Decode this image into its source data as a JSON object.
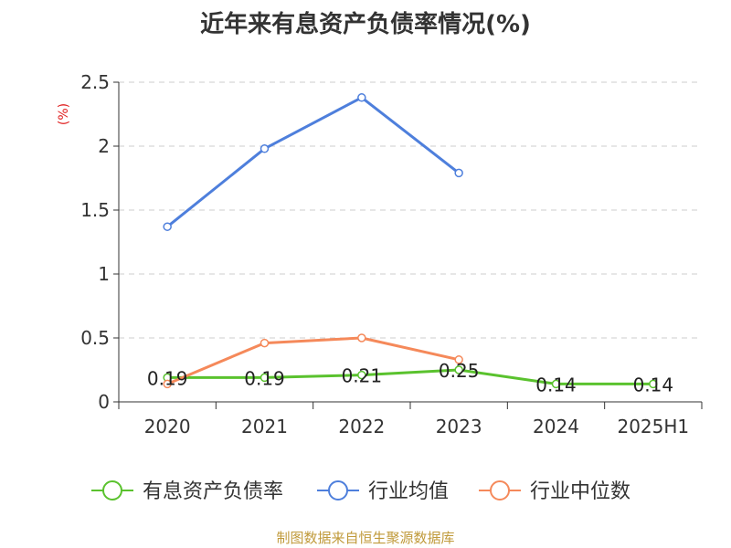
{
  "title": "近年来有息资产负债率情况(%)",
  "source": "制图数据来自恒生聚源数据库",
  "chart_data": {
    "type": "line",
    "categories": [
      "2020",
      "2021",
      "2022",
      "2023",
      "2024",
      "2025H1"
    ],
    "ylabel": "(%)",
    "ylim": [
      0,
      2.5
    ],
    "yticks": [
      "0",
      "0.5",
      "1",
      "1.5",
      "2",
      "2.5"
    ],
    "grid": true,
    "legend_position": "bottom",
    "series": [
      {
        "name": "有息资产负债率",
        "color": "#5ac22e",
        "values": [
          0.19,
          0.19,
          0.21,
          0.25,
          0.14,
          0.14
        ],
        "labels": [
          "0.19",
          "0.19",
          "0.21",
          "0.25",
          "0.14",
          "0.14"
        ]
      },
      {
        "name": "行业均值",
        "color": "#4e7fdc",
        "values": [
          1.37,
          1.98,
          2.38,
          1.79,
          null,
          null
        ]
      },
      {
        "name": "行业中位数",
        "color": "#f5895a",
        "values": [
          0.14,
          0.46,
          0.5,
          0.33,
          null,
          null
        ]
      }
    ]
  }
}
